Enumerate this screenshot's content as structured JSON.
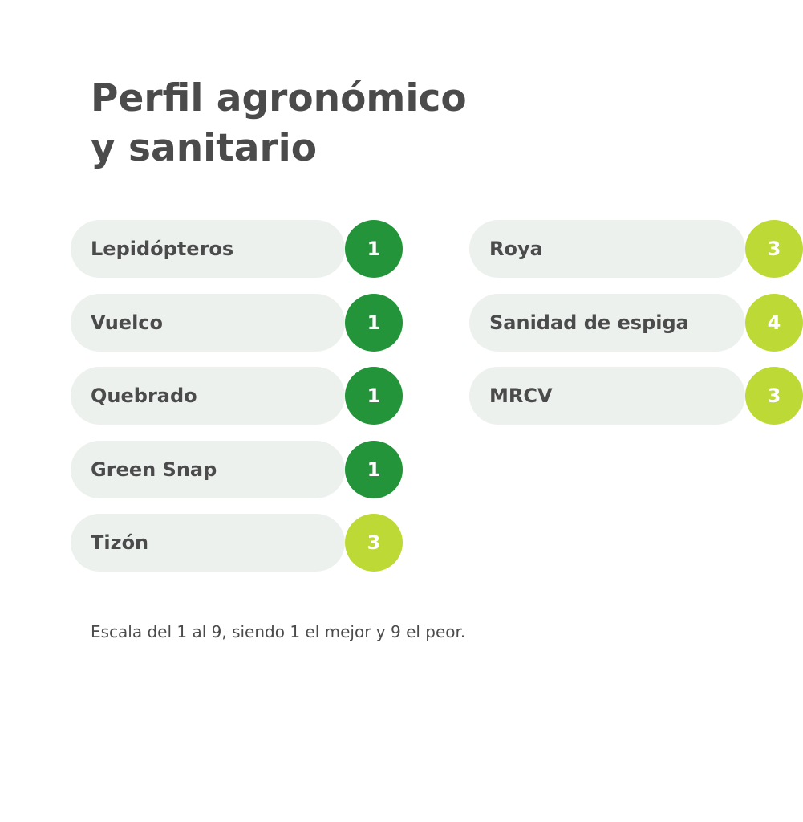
{
  "title": {
    "line1": "Perfil agronómico",
    "line2": "y sanitario"
  },
  "colors": {
    "text": "#4b4b4b",
    "pill_background": "#ecf1ee",
    "score_good": "#24943a",
    "score_medium": "#bcd936"
  },
  "traits_left": [
    {
      "label": "Lepidópteros",
      "score": "1",
      "level": "good"
    },
    {
      "label": "Vuelco",
      "score": "1",
      "level": "good"
    },
    {
      "label": "Quebrado",
      "score": "1",
      "level": "good"
    },
    {
      "label": "Green Snap",
      "score": "1",
      "level": "good"
    },
    {
      "label": "Tizón",
      "score": "3",
      "level": "medium"
    }
  ],
  "traits_right": [
    {
      "label": "Roya",
      "score": "3",
      "level": "medium"
    },
    {
      "label": "Sanidad de espiga",
      "score": "4",
      "level": "medium"
    },
    {
      "label": "MRCV",
      "score": "3",
      "level": "medium"
    }
  ],
  "footnote": "Escala del 1 al 9, siendo 1 el mejor y 9 el peor."
}
